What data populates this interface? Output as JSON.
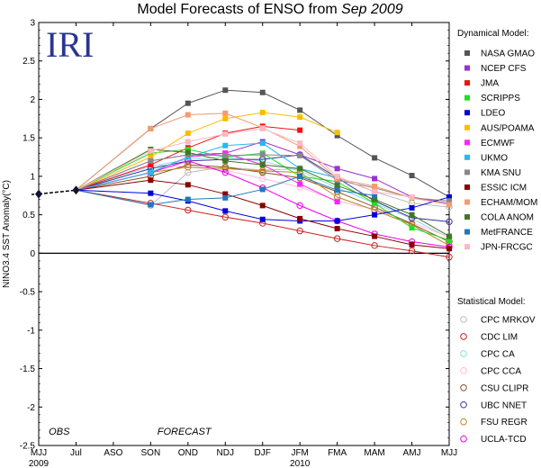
{
  "chart_data": {
    "type": "line",
    "title_main": "Model Forecasts of ENSO from ",
    "title_italic": "Sep 2009",
    "ylabel": "NINO3.4 SST Anomaly(°C)",
    "ylim": [
      -2.5,
      3
    ],
    "yticks": [
      "-2.5",
      "-2",
      "-1.5",
      "-1",
      "-0.5",
      "0",
      "0.5",
      "1",
      "1.5",
      "2",
      "2.5",
      "3"
    ],
    "categories": [
      "MJJ",
      "Jul",
      "ASO",
      "SON",
      "OND",
      "NDJ",
      "DJF",
      "JFM",
      "FMA",
      "MAM",
      "AMJ",
      "MJJ"
    ],
    "year_labels": [
      {
        "label": "2009",
        "at": 0
      },
      {
        "label": "2010",
        "at": 7
      }
    ],
    "annotations": [
      {
        "text": "OBS",
        "at": 0.55
      },
      {
        "text": "FORECAST",
        "at": 3.9
      }
    ],
    "logo": "IRI",
    "obs": {
      "x": [
        0,
        1
      ],
      "values": [
        0.77,
        0.82
      ]
    },
    "dynamical_title": "Dynamical Model:",
    "statistical_title": "Statistical Model:",
    "dynamical": [
      {
        "name": "NASA GMAO",
        "color": "#555555",
        "values": [
          1.62,
          1.95,
          2.12,
          2.09,
          1.86,
          1.53,
          1.24,
          1.01,
          0.73
        ]
      },
      {
        "name": "NCEP CFS",
        "color": "#9933cc",
        "values": [
          1.2,
          1.28,
          1.3,
          1.45,
          1.28,
          1.1,
          0.97,
          0.73,
          0.65
        ]
      },
      {
        "name": "JMA",
        "color": "#ee1111",
        "values": [
          1.15,
          1.37,
          1.56,
          1.65,
          1.6
        ]
      },
      {
        "name": "SCRIPPS",
        "color": "#22dd22",
        "values": [
          1.3,
          1.35,
          1.25,
          1.3,
          1.0,
          0.93,
          0.65,
          0.33,
          0.17
        ]
      },
      {
        "name": "LDEO",
        "color": "#0000dd",
        "values": [
          0.78,
          0.68,
          0.55,
          0.44,
          0.42,
          0.42,
          0.5,
          0.59,
          0.73
        ]
      },
      {
        "name": "AUS/POAMA",
        "color": "#ffbb00",
        "values": [
          1.25,
          1.56,
          1.75,
          1.83,
          1.77,
          1.57
        ]
      },
      {
        "name": "ECMWF",
        "color": "#ff22ff",
        "values": [
          1.05,
          1.25,
          1.3,
          1.15,
          0.9,
          0.67
        ]
      },
      {
        "name": "UKMO",
        "color": "#22bbee",
        "values": [
          1.05,
          1.25,
          1.4,
          1.43,
          1.1,
          0.98
        ]
      },
      {
        "name": "KMA SNU",
        "color": "#888888",
        "values": [
          1.2,
          1.28,
          1.27,
          1.28,
          1.27,
          0.95,
          0.85,
          0.72,
          0.68
        ]
      },
      {
        "name": "ESSIC ICM",
        "color": "#880000",
        "values": [
          0.95,
          0.89,
          0.77,
          0.62,
          0.45,
          0.32,
          0.22,
          0.11,
          0.06
        ]
      },
      {
        "name": "ECHAM/MOM",
        "color": "#f59a72",
        "values": [
          1.62,
          1.8,
          1.82,
          1.63,
          1.39,
          0.97,
          0.87,
          0.72,
          0.63
        ]
      },
      {
        "name": "COLA ANOM",
        "color": "#447722",
        "values": [
          1.35,
          1.31,
          1.2,
          1.15,
          1.1,
          0.88,
          0.7,
          0.5,
          0.22
        ]
      },
      {
        "name": "MetFRANCE",
        "color": "#2277bb",
        "values": [
          0.63,
          0.7,
          0.72,
          0.83,
          1.0,
          0.82,
          0.75
        ]
      },
      {
        "name": "JPN-FRCGC",
        "color": "#ffb7c2",
        "values": [
          1.33,
          1.45,
          1.55,
          1.62,
          1.43,
          1.0,
          0.8,
          0.73
        ]
      }
    ],
    "statistical": [
      {
        "name": "CPC MRKOV",
        "color": "#bbbbbb",
        "values": [
          0.62,
          1.05,
          1.12,
          1.08,
          1.1,
          0.98,
          0.8,
          0.65,
          0.6
        ]
      },
      {
        "name": "CDC LIM",
        "color": "#cc2222",
        "values": [
          0.65,
          0.56,
          0.47,
          0.39,
          0.29,
          0.19,
          0.1,
          0.03,
          -0.05
        ]
      },
      {
        "name": "CPC CA",
        "color": "#88dddd",
        "values": [
          1.13,
          1.22,
          1.25,
          1.2,
          1.07,
          0.85,
          0.65,
          0.45,
          0.2
        ]
      },
      {
        "name": "CPC CCA",
        "color": "#ffbbdd",
        "values": [
          1.15,
          1.12,
          1.08,
          0.97,
          0.86,
          0.68,
          0.57,
          0.4,
          0.21
        ]
      },
      {
        "name": "CSU CLIPR",
        "color": "#885522",
        "values": [
          1.0,
          1.15,
          1.12,
          1.05,
          0.98,
          0.8,
          0.6,
          0.38,
          0.15
        ]
      },
      {
        "name": "UBC NNET",
        "color": "#333399",
        "values": [
          1.1,
          1.2,
          1.22,
          1.22,
          1.28,
          0.98,
          0.68,
          0.46,
          0.41
        ]
      },
      {
        "name": "FSU REGR",
        "color": "#bb8822",
        "values": [
          1.05,
          1.12,
          1.1,
          1.07,
          1.05,
          0.73,
          0.56,
          0.37,
          0.1
        ]
      },
      {
        "name": "UCLA-TCD",
        "color": "#ee00ee",
        "values": [
          1.05,
          1.2,
          1.05,
          0.85,
          0.62,
          0.42,
          0.25,
          0.15,
          0.08
        ]
      }
    ]
  }
}
